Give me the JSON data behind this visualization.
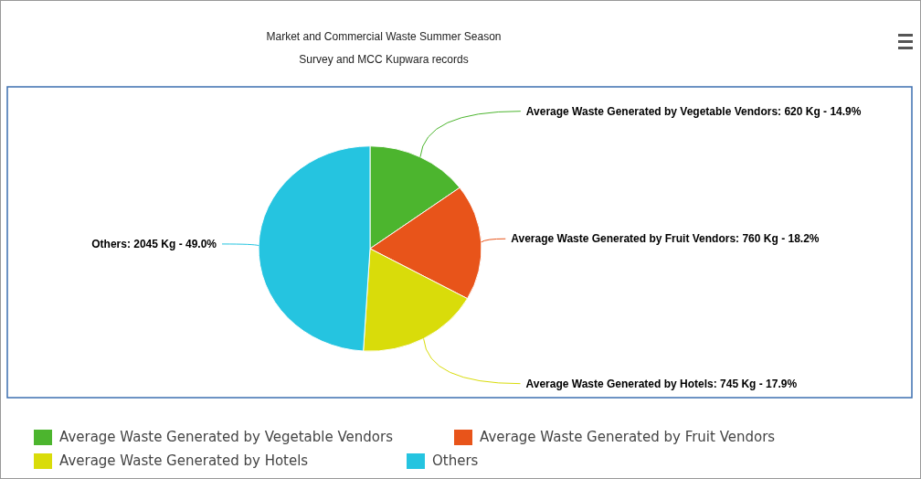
{
  "chart_data": {
    "type": "pie",
    "title": "Market and Commercial Waste Summer Season\nSurvey and MCC Kupwara records",
    "categories": [
      "Average Waste Generated by Vegetable Vendors",
      "Average Waste Generated by Fruit Vendors",
      "Average Waste Generated by Hotels",
      "Others"
    ],
    "values": [
      620,
      760,
      745,
      2045
    ],
    "value_labels": [
      ": 620 Kg - 14.9%",
      ": 760 Kg - 18.2%",
      ": 745 Kg - 17.9%",
      ": 2045 Kg - 49.0%"
    ],
    "colors": [
      "#4cb52e",
      "#e8541a",
      "#d9dc0a",
      "#25c4e0"
    ],
    "legend": "bottom"
  }
}
